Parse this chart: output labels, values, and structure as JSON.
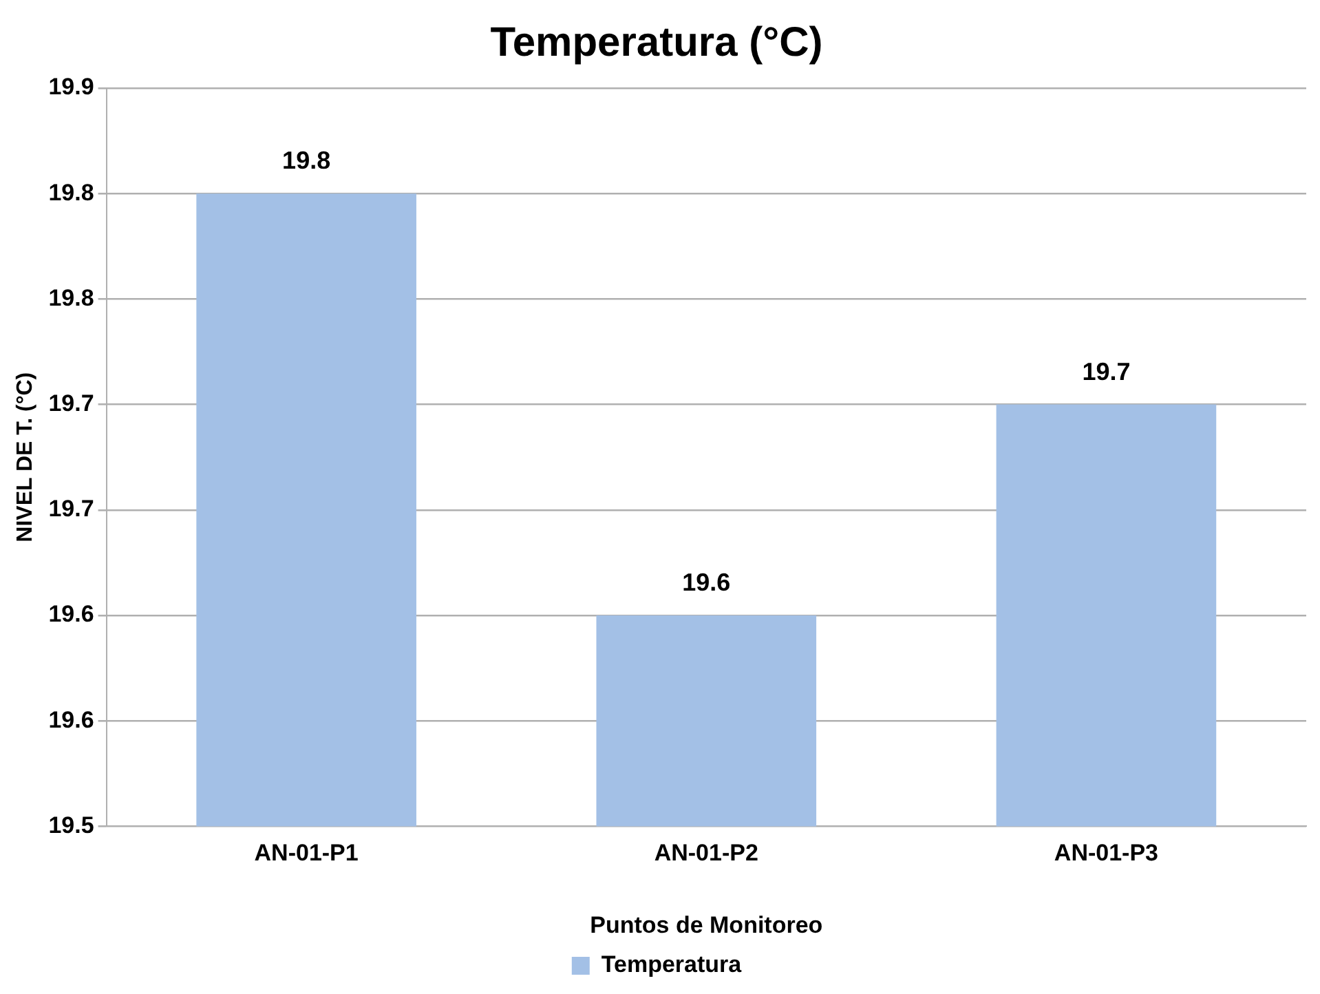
{
  "chart_data": {
    "type": "bar",
    "title": "Temperatura (°C)",
    "xlabel": "Puntos de Monitoreo",
    "ylabel": "NIVEL DE T. (°C)",
    "categories": [
      "AN-01-P1",
      "AN-01-P2",
      "AN-01-P3"
    ],
    "series": [
      {
        "name": "Temperatura",
        "color": "#a3c0e6",
        "values": [
          19.8,
          19.6,
          19.7
        ]
      }
    ],
    "ylim": [
      19.5,
      19.85
    ],
    "yticks": [
      19.5,
      {
        "value": 19.55,
        "label": "19.6"
      },
      19.6,
      {
        "value": 19.65,
        "label": "19.7"
      },
      19.7,
      {
        "value": 19.75,
        "label": "19.8"
      },
      19.8,
      {
        "value": 19.85,
        "label": "19.9"
      }
    ],
    "grid": "y",
    "legend": "bottom",
    "data_labels": true
  }
}
